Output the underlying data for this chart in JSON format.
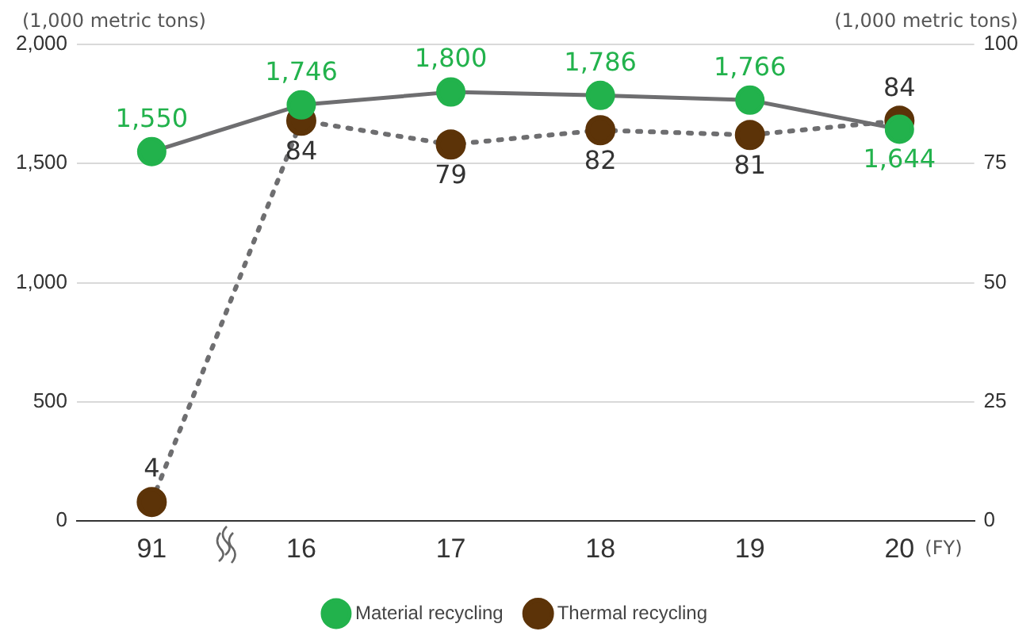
{
  "chart_data": {
    "type": "line",
    "categories": [
      "91",
      "16",
      "17",
      "18",
      "19",
      "20"
    ],
    "xlabel": "(FY)",
    "ylabel": "(1,000 metric tons)",
    "y2label": "(1,000 metric tons)",
    "series": [
      {
        "name": "Material recycling",
        "color": "#22b24c",
        "values": [
          1550,
          1746,
          1800,
          1786,
          1766,
          1644
        ],
        "value_labels": [
          "1,550",
          "1,746",
          "1,800",
          "1,786",
          "1,766",
          "1,644"
        ],
        "line_style": "solid"
      },
      {
        "name": "Thermal recycling",
        "color": "#5c3308",
        "values": [
          4,
          84,
          79,
          82,
          81,
          84
        ],
        "value_labels": [
          "4",
          "84",
          "79",
          "82",
          "81",
          "84"
        ],
        "axis": "y2",
        "line_style": "dotted"
      }
    ],
    "ylim": [
      0,
      2000
    ],
    "yticks": [
      0,
      {
        "value": 500,
        "label": "500"
      },
      {
        "value": 1000,
        "label": "1,000"
      },
      {
        "value": 1500,
        "label": "1,500"
      },
      {
        "value": 2000,
        "label": "2,000"
      }
    ],
    "y2lim": [
      0,
      100
    ],
    "y2ticks": [
      0,
      25,
      50,
      75,
      100
    ],
    "grid": "y",
    "legend": "bottom",
    "marker": "circle"
  }
}
